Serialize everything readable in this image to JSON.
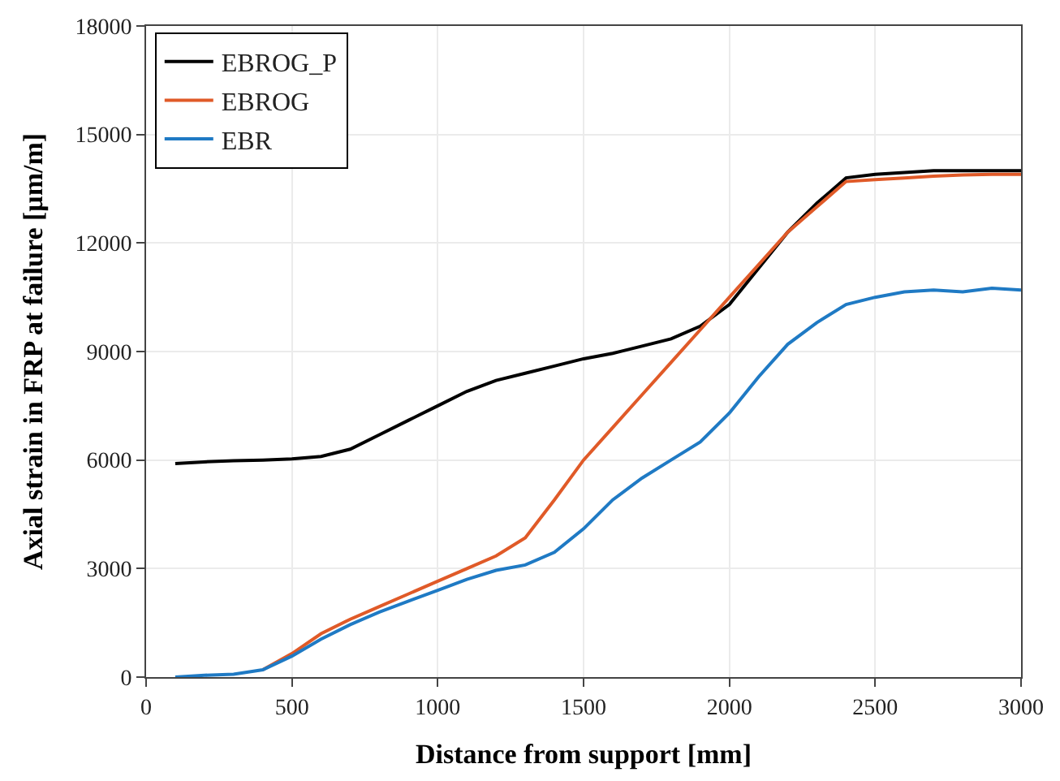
{
  "chart_data": {
    "type": "line",
    "xlabel": "Distance from support [mm]",
    "ylabel": "Axial strain in FRP at failure [μm/m]",
    "x": [
      100,
      200,
      300,
      400,
      500,
      600,
      700,
      800,
      900,
      1000,
      1100,
      1200,
      1300,
      1400,
      1500,
      1600,
      1700,
      1800,
      1900,
      2000,
      2100,
      2200,
      2300,
      2400,
      2500,
      2600,
      2700,
      2800,
      2900,
      3000
    ],
    "series": [
      {
        "name": "EBROG_P",
        "color": "#000000",
        "values": [
          5900,
          5950,
          5980,
          6000,
          6030,
          6100,
          6300,
          6700,
          7100,
          7500,
          7900,
          8200,
          8400,
          8600,
          8800,
          8950,
          9150,
          9350,
          9700,
          10300,
          11300,
          12300,
          13100,
          13800,
          13900,
          13950,
          14000,
          14000,
          14000,
          14000
        ]
      },
      {
        "name": "EBROG",
        "color": "#e05a28",
        "values": [
          null,
          null,
          null,
          200,
          650,
          1200,
          1600,
          1950,
          2300,
          2650,
          3000,
          3350,
          3850,
          4900,
          6000,
          6900,
          7800,
          8700,
          9600,
          10500,
          11400,
          12300,
          13000,
          13700,
          13750,
          13800,
          13850,
          13880,
          13900,
          13900
        ]
      },
      {
        "name": "EBR",
        "color": "#1f7ac4",
        "values": [
          0,
          50,
          80,
          200,
          580,
          1050,
          1450,
          1800,
          2100,
          2400,
          2700,
          2950,
          3100,
          3450,
          4100,
          4900,
          5500,
          6000,
          6500,
          7300,
          8300,
          9200,
          9800,
          10300,
          10500,
          10650,
          10700,
          10650,
          10750,
          10700
        ]
      }
    ],
    "xlim": [
      0,
      3000
    ],
    "xticks": [
      0,
      500,
      1000,
      1500,
      2000,
      2500,
      3000
    ],
    "ylim": [
      0,
      18000
    ],
    "yticks": [
      0,
      3000,
      6000,
      9000,
      12000,
      15000,
      18000
    ],
    "grid": true,
    "legend": "top left",
    "marker": "none",
    "line_style": "solid"
  }
}
